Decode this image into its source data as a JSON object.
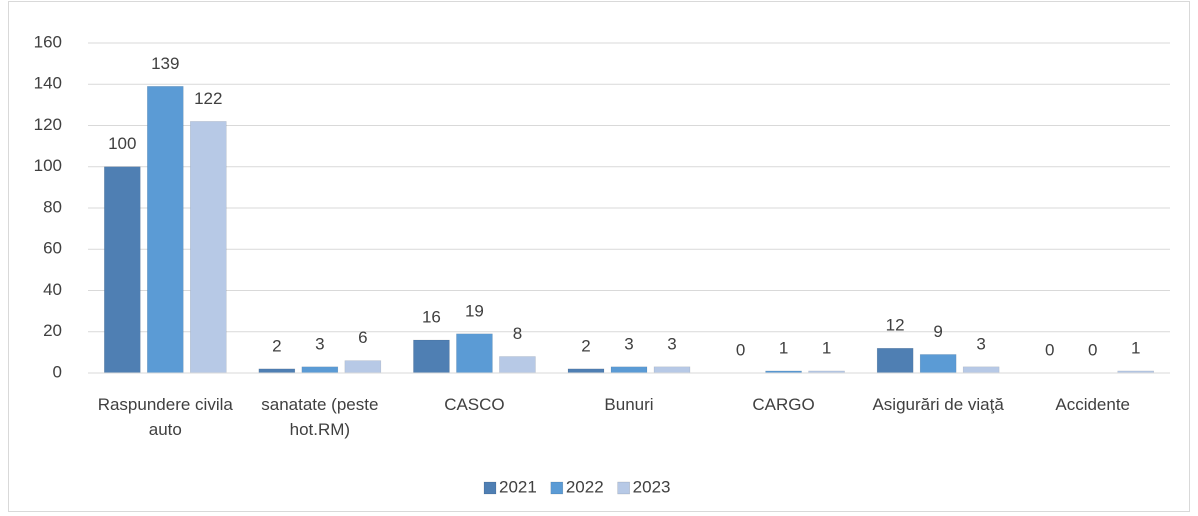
{
  "chart_data": {
    "type": "bar",
    "categories": [
      "Raspundere civila auto",
      "sanatate (peste hot.RM)",
      "CASCO",
      "Bunuri",
      "CARGO",
      "Asigurări de viaţă",
      "Accidente"
    ],
    "series": [
      {
        "name": "2021",
        "color": "#4f7fb3",
        "values": [
          100,
          2,
          16,
          2,
          0,
          12,
          0
        ]
      },
      {
        "name": "2022",
        "color": "#5b9bd5",
        "values": [
          139,
          3,
          19,
          3,
          1,
          9,
          0
        ]
      },
      {
        "name": "2023",
        "color": "#b7c9e6",
        "values": [
          122,
          6,
          8,
          3,
          1,
          3,
          1
        ]
      }
    ],
    "ylim": [
      0,
      160
    ],
    "yticks": [
      0,
      20,
      40,
      60,
      80,
      100,
      120,
      140,
      160
    ],
    "grid": true,
    "legend": "bottom"
  }
}
